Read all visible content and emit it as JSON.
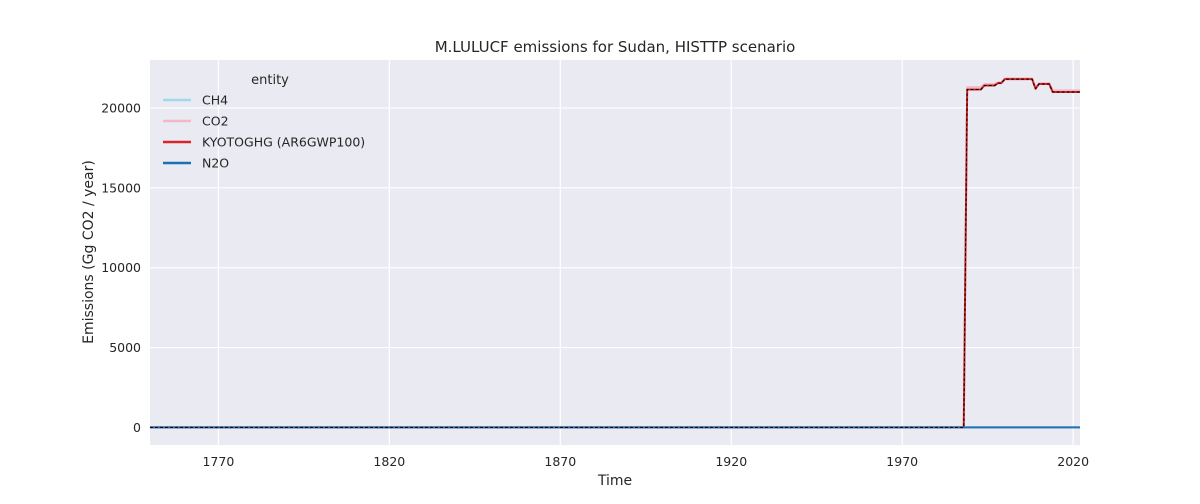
{
  "chart_data": {
    "type": "line",
    "title": "M.LULUCF emissions for Sudan, HISTTP scenario",
    "xlabel": "Time",
    "ylabel": "Emissions (Gg CO2 / year)",
    "xlim": [
      1750,
      2022
    ],
    "ylim": [
      -1100,
      23000
    ],
    "x_ticks": [
      1770,
      1820,
      1870,
      1920,
      1970,
      2020
    ],
    "y_ticks": [
      0,
      5000,
      10000,
      15000,
      20000
    ],
    "grid": true,
    "legend": {
      "title": "entity",
      "placement": "top-left"
    },
    "series": [
      {
        "name": "CH4",
        "color": "#9fd9ec",
        "style": "solid",
        "points": [
          [
            1750,
            0
          ],
          [
            2022,
            0
          ]
        ]
      },
      {
        "name": "CO2",
        "color": "#f2b8c6",
        "style": "solid",
        "points": [
          [
            1750,
            0
          ],
          [
            1988,
            0
          ],
          [
            1989,
            21300
          ],
          [
            1990,
            21300
          ],
          [
            1991,
            21300
          ],
          [
            1992,
            21300
          ],
          [
            1993,
            21300
          ],
          [
            1994,
            21500
          ],
          [
            1995,
            21500
          ],
          [
            1996,
            21500
          ],
          [
            1997,
            21500
          ],
          [
            1998,
            21600
          ],
          [
            1999,
            21600
          ],
          [
            2000,
            21850
          ],
          [
            2001,
            21850
          ],
          [
            2002,
            21850
          ],
          [
            2003,
            21850
          ],
          [
            2004,
            21850
          ],
          [
            2005,
            21850
          ],
          [
            2006,
            21850
          ],
          [
            2007,
            21850
          ],
          [
            2008,
            21850
          ],
          [
            2009,
            21250
          ],
          [
            2010,
            21550
          ],
          [
            2011,
            21550
          ],
          [
            2012,
            21550
          ],
          [
            2013,
            21550
          ],
          [
            2014,
            21100
          ],
          [
            2015,
            21100
          ],
          [
            2016,
            21100
          ],
          [
            2017,
            21100
          ],
          [
            2018,
            21100
          ],
          [
            2019,
            21100
          ],
          [
            2020,
            21100
          ],
          [
            2021,
            21100
          ],
          [
            2022,
            21100
          ]
        ]
      },
      {
        "name": "KYOTOGHG (AR6GWP100)",
        "color": "#d62728",
        "style": "solid",
        "points": [
          [
            1750,
            0
          ],
          [
            1988,
            0
          ],
          [
            1989,
            21150
          ],
          [
            1990,
            21150
          ],
          [
            1991,
            21150
          ],
          [
            1992,
            21150
          ],
          [
            1993,
            21150
          ],
          [
            1994,
            21400
          ],
          [
            1995,
            21400
          ],
          [
            1996,
            21400
          ],
          [
            1997,
            21400
          ],
          [
            1998,
            21550
          ],
          [
            1999,
            21550
          ],
          [
            2000,
            21800
          ],
          [
            2001,
            21800
          ],
          [
            2002,
            21800
          ],
          [
            2003,
            21800
          ],
          [
            2004,
            21800
          ],
          [
            2005,
            21800
          ],
          [
            2006,
            21800
          ],
          [
            2007,
            21800
          ],
          [
            2008,
            21800
          ],
          [
            2009,
            21200
          ],
          [
            2010,
            21500
          ],
          [
            2011,
            21500
          ],
          [
            2012,
            21500
          ],
          [
            2013,
            21500
          ],
          [
            2014,
            21000
          ],
          [
            2015,
            21000
          ],
          [
            2016,
            21000
          ],
          [
            2017,
            21000
          ],
          [
            2018,
            21000
          ],
          [
            2019,
            21000
          ],
          [
            2020,
            21000
          ],
          [
            2021,
            21000
          ],
          [
            2022,
            21000
          ]
        ]
      },
      {
        "name": "N2O",
        "color": "#1f6fb4",
        "style": "solid",
        "points": [
          [
            1750,
            0
          ],
          [
            2022,
            0
          ]
        ]
      },
      {
        "color": "#000000",
        "style": "dashed",
        "points": [
          [
            1750,
            0
          ],
          [
            1988,
            0
          ],
          [
            1989,
            21150
          ],
          [
            1990,
            21150
          ],
          [
            1991,
            21150
          ],
          [
            1992,
            21150
          ],
          [
            1993,
            21150
          ],
          [
            1994,
            21400
          ],
          [
            1995,
            21400
          ],
          [
            1996,
            21400
          ],
          [
            1997,
            21400
          ],
          [
            1998,
            21550
          ],
          [
            1999,
            21550
          ],
          [
            2000,
            21800
          ],
          [
            2001,
            21800
          ],
          [
            2002,
            21800
          ],
          [
            2003,
            21800
          ],
          [
            2004,
            21800
          ],
          [
            2005,
            21800
          ],
          [
            2006,
            21800
          ],
          [
            2007,
            21800
          ],
          [
            2008,
            21800
          ],
          [
            2009,
            21200
          ],
          [
            2010,
            21500
          ],
          [
            2011,
            21500
          ],
          [
            2012,
            21500
          ],
          [
            2013,
            21500
          ],
          [
            2014,
            21000
          ],
          [
            2015,
            21000
          ],
          [
            2016,
            21000
          ],
          [
            2017,
            21000
          ],
          [
            2018,
            21000
          ],
          [
            2019,
            21000
          ],
          [
            2020,
            21000
          ],
          [
            2021,
            21000
          ],
          [
            2022,
            21000
          ]
        ]
      }
    ]
  }
}
